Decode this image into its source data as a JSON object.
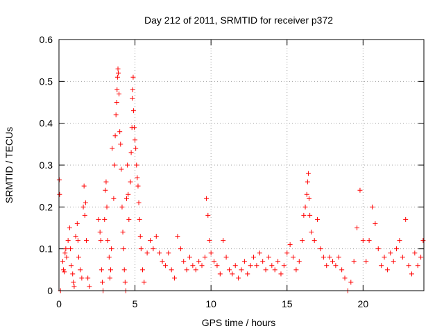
{
  "chart_data": {
    "type": "scatter",
    "title": "Day 212 of 2011, SRMTID for receiver p372",
    "xlabel": "GPS time / hours",
    "ylabel": "SRMTID / TECUs",
    "xlim": [
      0,
      24
    ],
    "ylim": [
      0,
      0.6
    ],
    "xticks": [
      0,
      5,
      10,
      15,
      20
    ],
    "xtick_labels": [
      "0",
      "5",
      "10",
      "15",
      "20"
    ],
    "yticks": [
      0,
      0.1,
      0.2,
      0.3,
      0.4,
      0.5,
      0.6
    ],
    "ytick_labels": [
      "0",
      "0.1",
      "0.2",
      "0.3",
      "0.4",
      "0.5",
      "0.6"
    ],
    "grid": true,
    "marker": "plus",
    "marker_color": "#ff0000",
    "series": [
      {
        "name": "SRMTID",
        "points": [
          [
            0.02,
            0.265
          ],
          [
            0.04,
            0.23
          ],
          [
            0.1,
            0.0
          ],
          [
            0.25,
            0.07
          ],
          [
            0.3,
            0.05
          ],
          [
            0.35,
            0.045
          ],
          [
            0.4,
            0.09
          ],
          [
            0.45,
            0.1
          ],
          [
            0.5,
            0.08
          ],
          [
            0.6,
            0.12
          ],
          [
            0.7,
            0.15
          ],
          [
            0.75,
            0.1
          ],
          [
            0.8,
            0.06
          ],
          [
            0.9,
            0.04
          ],
          [
            0.95,
            0.02
          ],
          [
            1.0,
            0.01
          ],
          [
            1.1,
            0.13
          ],
          [
            1.2,
            0.16
          ],
          [
            1.25,
            0.12
          ],
          [
            1.3,
            0.08
          ],
          [
            1.4,
            0.05
          ],
          [
            1.5,
            0.03
          ],
          [
            1.6,
            0.2
          ],
          [
            1.65,
            0.25
          ],
          [
            1.7,
            0.18
          ],
          [
            1.75,
            0.21
          ],
          [
            1.8,
            0.12
          ],
          [
            1.9,
            0.03
          ],
          [
            2.0,
            0.01
          ],
          [
            2.6,
            0.17
          ],
          [
            2.7,
            0.14
          ],
          [
            2.75,
            0.12
          ],
          [
            2.8,
            0.05
          ],
          [
            2.85,
            0.02
          ],
          [
            2.9,
            0.0
          ],
          [
            3.0,
            0.17
          ],
          [
            3.05,
            0.24
          ],
          [
            3.1,
            0.26
          ],
          [
            3.15,
            0.2
          ],
          [
            3.2,
            0.12
          ],
          [
            3.3,
            0.08
          ],
          [
            3.35,
            0.03
          ],
          [
            3.4,
            0.05
          ],
          [
            3.45,
            0.1
          ],
          [
            3.5,
            0.34
          ],
          [
            3.6,
            0.22
          ],
          [
            3.65,
            0.3
          ],
          [
            3.7,
            0.37
          ],
          [
            3.75,
            0.42
          ],
          [
            3.8,
            0.45
          ],
          [
            3.82,
            0.48
          ],
          [
            3.85,
            0.51
          ],
          [
            3.88,
            0.53
          ],
          [
            3.9,
            0.52
          ],
          [
            3.95,
            0.47
          ],
          [
            4.0,
            0.38
          ],
          [
            4.05,
            0.35
          ],
          [
            4.1,
            0.29
          ],
          [
            4.15,
            0.2
          ],
          [
            4.2,
            0.14
          ],
          [
            4.25,
            0.1
          ],
          [
            4.3,
            0.05
          ],
          [
            4.35,
            0.02
          ],
          [
            4.4,
            0.0
          ],
          [
            4.45,
            0.22
          ],
          [
            4.5,
            0.3
          ],
          [
            4.55,
            0.23
          ],
          [
            4.6,
            0.17
          ],
          [
            4.7,
            0.26
          ],
          [
            4.75,
            0.33
          ],
          [
            4.8,
            0.39
          ],
          [
            4.82,
            0.46
          ],
          [
            4.85,
            0.48
          ],
          [
            4.88,
            0.51
          ],
          [
            4.9,
            0.43
          ],
          [
            4.95,
            0.39
          ],
          [
            5.0,
            0.36
          ],
          [
            5.05,
            0.34
          ],
          [
            5.1,
            0.3
          ],
          [
            5.15,
            0.27
          ],
          [
            5.2,
            0.25
          ],
          [
            5.25,
            0.21
          ],
          [
            5.3,
            0.17
          ],
          [
            5.35,
            0.13
          ],
          [
            5.4,
            0.1
          ],
          [
            5.5,
            0.05
          ],
          [
            5.6,
            0.02
          ],
          [
            5.8,
            0.09
          ],
          [
            6.0,
            0.12
          ],
          [
            6.2,
            0.1
          ],
          [
            6.4,
            0.13
          ],
          [
            6.6,
            0.09
          ],
          [
            6.8,
            0.07
          ],
          [
            7.0,
            0.06
          ],
          [
            7.2,
            0.09
          ],
          [
            7.4,
            0.05
          ],
          [
            7.6,
            0.03
          ],
          [
            7.8,
            0.13
          ],
          [
            8.0,
            0.1
          ],
          [
            8.2,
            0.07
          ],
          [
            8.4,
            0.05
          ],
          [
            8.6,
            0.08
          ],
          [
            8.8,
            0.06
          ],
          [
            9.0,
            0.05
          ],
          [
            9.2,
            0.07
          ],
          [
            9.4,
            0.06
          ],
          [
            9.6,
            0.08
          ],
          [
            9.7,
            0.22
          ],
          [
            9.8,
            0.18
          ],
          [
            9.9,
            0.12
          ],
          [
            10.0,
            0.09
          ],
          [
            10.2,
            0.07
          ],
          [
            10.4,
            0.06
          ],
          [
            10.6,
            0.04
          ],
          [
            10.8,
            0.12
          ],
          [
            11.0,
            0.08
          ],
          [
            11.2,
            0.05
          ],
          [
            11.4,
            0.04
          ],
          [
            11.6,
            0.06
          ],
          [
            11.8,
            0.03
          ],
          [
            12.0,
            0.05
          ],
          [
            12.2,
            0.07
          ],
          [
            12.4,
            0.04
          ],
          [
            12.6,
            0.06
          ],
          [
            12.8,
            0.08
          ],
          [
            13.0,
            0.06
          ],
          [
            13.2,
            0.09
          ],
          [
            13.4,
            0.07
          ],
          [
            13.6,
            0.05
          ],
          [
            13.8,
            0.08
          ],
          [
            14.0,
            0.06
          ],
          [
            14.2,
            0.05
          ],
          [
            14.4,
            0.07
          ],
          [
            14.6,
            0.04
          ],
          [
            14.8,
            0.06
          ],
          [
            15.0,
            0.09
          ],
          [
            15.2,
            0.11
          ],
          [
            15.4,
            0.08
          ],
          [
            15.6,
            0.05
          ],
          [
            15.8,
            0.07
          ],
          [
            16.0,
            0.12
          ],
          [
            16.1,
            0.18
          ],
          [
            16.2,
            0.2
          ],
          [
            16.3,
            0.23
          ],
          [
            16.35,
            0.26
          ],
          [
            16.4,
            0.28
          ],
          [
            16.45,
            0.22
          ],
          [
            16.5,
            0.18
          ],
          [
            16.6,
            0.14
          ],
          [
            16.8,
            0.12
          ],
          [
            17.0,
            0.17
          ],
          [
            17.2,
            0.1
          ],
          [
            17.4,
            0.08
          ],
          [
            17.6,
            0.06
          ],
          [
            17.8,
            0.08
          ],
          [
            18.0,
            0.07
          ],
          [
            18.2,
            0.06
          ],
          [
            18.4,
            0.08
          ],
          [
            18.6,
            0.05
          ],
          [
            18.8,
            0.03
          ],
          [
            19.0,
            0.0
          ],
          [
            19.2,
            0.02
          ],
          [
            19.4,
            0.07
          ],
          [
            19.6,
            0.15
          ],
          [
            19.8,
            0.24
          ],
          [
            20.0,
            0.12
          ],
          [
            20.2,
            0.07
          ],
          [
            20.4,
            0.12
          ],
          [
            20.6,
            0.2
          ],
          [
            20.8,
            0.16
          ],
          [
            21.0,
            0.1
          ],
          [
            21.2,
            0.06
          ],
          [
            21.4,
            0.08
          ],
          [
            21.6,
            0.05
          ],
          [
            21.8,
            0.09
          ],
          [
            22.0,
            0.07
          ],
          [
            22.2,
            0.1
          ],
          [
            22.4,
            0.12
          ],
          [
            22.6,
            0.08
          ],
          [
            22.8,
            0.17
          ],
          [
            23.0,
            0.06
          ],
          [
            23.2,
            0.04
          ],
          [
            23.4,
            0.09
          ],
          [
            23.6,
            0.06
          ],
          [
            23.8,
            0.08
          ],
          [
            23.95,
            0.12
          ]
        ]
      }
    ]
  }
}
